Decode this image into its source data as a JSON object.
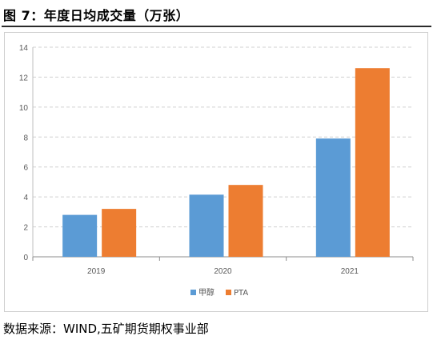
{
  "figure": {
    "title": "图 7：年度日均成交量（万张）",
    "source": "数据来源：WIND,五矿期货期权事业部"
  },
  "chart_data": {
    "type": "bar",
    "categories": [
      "2019",
      "2020",
      "2021"
    ],
    "series": [
      {
        "name": "甲醇",
        "values": [
          2.8,
          4.15,
          7.9
        ],
        "color": "#5b9bd5"
      },
      {
        "name": "PTA",
        "values": [
          3.2,
          4.8,
          12.6
        ],
        "color": "#ed7d31"
      }
    ],
    "yticks": [
      "0",
      "2",
      "4",
      "6",
      "8",
      "10",
      "12",
      "14"
    ],
    "ylim": [
      0,
      14
    ],
    "grid": true,
    "legend": "bottom-center"
  }
}
